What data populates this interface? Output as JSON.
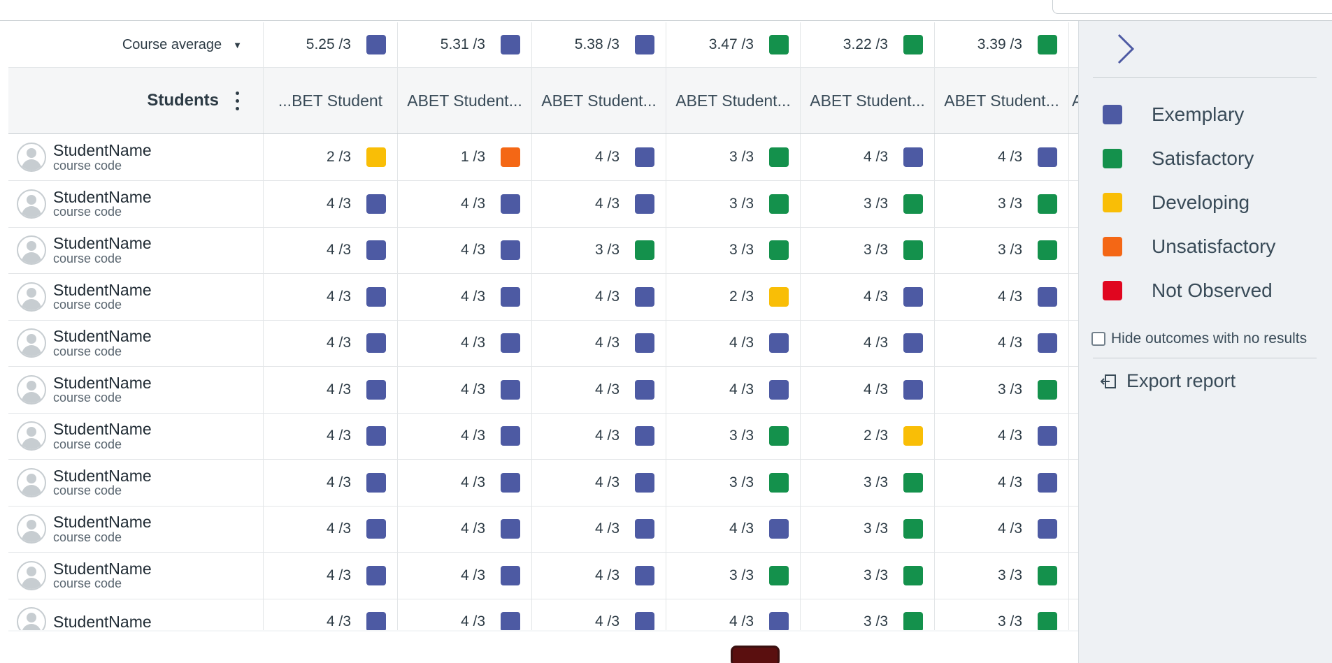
{
  "colors": {
    "exemplary": "#4d5aa3",
    "satisfactory": "#14914c",
    "developing": "#f9be06",
    "unsatisfactory": "#f46715",
    "not_observed": "#e0061f"
  },
  "course_average": {
    "label": "Course average",
    "caret": "▼",
    "values": [
      {
        "score": "5.25 /3",
        "level": "exemplary"
      },
      {
        "score": "5.31 /3",
        "level": "exemplary"
      },
      {
        "score": "5.38 /3",
        "level": "exemplary"
      },
      {
        "score": "3.47 /3",
        "level": "satisfactory"
      },
      {
        "score": "3.22 /3",
        "level": "satisfactory"
      },
      {
        "score": "3.39 /3",
        "level": "satisfactory"
      }
    ]
  },
  "header": {
    "students_label": "Students",
    "outcomes": [
      "ABET Student...",
      "ABET Student...",
      "ABET Student...",
      "ABET Student...",
      "ABET Student...",
      "ABET Student..."
    ],
    "first_outcome_visible": "BET Student...",
    "partial_outcome": "AB"
  },
  "students": [
    {
      "name": "StudentName",
      "code": "course code",
      "scores": [
        [
          "2 /3",
          "developing"
        ],
        [
          "1 /3",
          "unsatisfactory"
        ],
        [
          "4 /3",
          "exemplary"
        ],
        [
          "3 /3",
          "satisfactory"
        ],
        [
          "4 /3",
          "exemplary"
        ],
        [
          "4 /3",
          "exemplary"
        ]
      ]
    },
    {
      "name": "StudentName",
      "code": "course code",
      "scores": [
        [
          "4 /3",
          "exemplary"
        ],
        [
          "4 /3",
          "exemplary"
        ],
        [
          "4 /3",
          "exemplary"
        ],
        [
          "3 /3",
          "satisfactory"
        ],
        [
          "3 /3",
          "satisfactory"
        ],
        [
          "3 /3",
          "satisfactory"
        ]
      ]
    },
    {
      "name": "StudentName",
      "code": "course code",
      "scores": [
        [
          "4 /3",
          "exemplary"
        ],
        [
          "4 /3",
          "exemplary"
        ],
        [
          "3 /3",
          "satisfactory"
        ],
        [
          "3 /3",
          "satisfactory"
        ],
        [
          "3 /3",
          "satisfactory"
        ],
        [
          "3 /3",
          "satisfactory"
        ]
      ]
    },
    {
      "name": "StudentName",
      "code": "course code",
      "scores": [
        [
          "4 /3",
          "exemplary"
        ],
        [
          "4 /3",
          "exemplary"
        ],
        [
          "4 /3",
          "exemplary"
        ],
        [
          "2 /3",
          "developing"
        ],
        [
          "4 /3",
          "exemplary"
        ],
        [
          "4 /3",
          "exemplary"
        ]
      ]
    },
    {
      "name": "StudentName",
      "code": "course code",
      "scores": [
        [
          "4 /3",
          "exemplary"
        ],
        [
          "4 /3",
          "exemplary"
        ],
        [
          "4 /3",
          "exemplary"
        ],
        [
          "4 /3",
          "exemplary"
        ],
        [
          "4 /3",
          "exemplary"
        ],
        [
          "4 /3",
          "exemplary"
        ]
      ]
    },
    {
      "name": "StudentName",
      "code": "course code",
      "scores": [
        [
          "4 /3",
          "exemplary"
        ],
        [
          "4 /3",
          "exemplary"
        ],
        [
          "4 /3",
          "exemplary"
        ],
        [
          "4 /3",
          "exemplary"
        ],
        [
          "4 /3",
          "exemplary"
        ],
        [
          "3 /3",
          "satisfactory"
        ]
      ]
    },
    {
      "name": "StudentName",
      "code": "course code",
      "scores": [
        [
          "4 /3",
          "exemplary"
        ],
        [
          "4 /3",
          "exemplary"
        ],
        [
          "4 /3",
          "exemplary"
        ],
        [
          "3 /3",
          "satisfactory"
        ],
        [
          "2 /3",
          "developing"
        ],
        [
          "4 /3",
          "exemplary"
        ]
      ]
    },
    {
      "name": "StudentName",
      "code": "course code",
      "scores": [
        [
          "4 /3",
          "exemplary"
        ],
        [
          "4 /3",
          "exemplary"
        ],
        [
          "4 /3",
          "exemplary"
        ],
        [
          "3 /3",
          "satisfactory"
        ],
        [
          "3 /3",
          "satisfactory"
        ],
        [
          "4 /3",
          "exemplary"
        ]
      ]
    },
    {
      "name": "StudentName",
      "code": "course code",
      "scores": [
        [
          "4 /3",
          "exemplary"
        ],
        [
          "4 /3",
          "exemplary"
        ],
        [
          "4 /3",
          "exemplary"
        ],
        [
          "4 /3",
          "exemplary"
        ],
        [
          "3 /3",
          "satisfactory"
        ],
        [
          "4 /3",
          "exemplary"
        ]
      ]
    },
    {
      "name": "StudentName",
      "code": "course code",
      "scores": [
        [
          "4 /3",
          "exemplary"
        ],
        [
          "4 /3",
          "exemplary"
        ],
        [
          "4 /3",
          "exemplary"
        ],
        [
          "3 /3",
          "satisfactory"
        ],
        [
          "3 /3",
          "satisfactory"
        ],
        [
          "3 /3",
          "satisfactory"
        ]
      ]
    },
    {
      "name": "StudentName",
      "code": "",
      "scores": [
        [
          "4 /3",
          "exemplary"
        ],
        [
          "4 /3",
          "exemplary"
        ],
        [
          "4 /3",
          "exemplary"
        ],
        [
          "4 /3",
          "exemplary"
        ],
        [
          "3 /3",
          "satisfactory"
        ],
        [
          "3 /3",
          "satisfactory"
        ]
      ]
    }
  ],
  "legend": [
    {
      "label": "Exemplary",
      "level": "exemplary"
    },
    {
      "label": "Satisfactory",
      "level": "satisfactory"
    },
    {
      "label": "Developing",
      "level": "developing"
    },
    {
      "label": "Unsatisfactory",
      "level": "unsatisfactory"
    },
    {
      "label": "Not Observed",
      "level": "not_observed"
    }
  ],
  "panel": {
    "hide_label": "Hide outcomes with no results",
    "export_label": "Export report"
  }
}
